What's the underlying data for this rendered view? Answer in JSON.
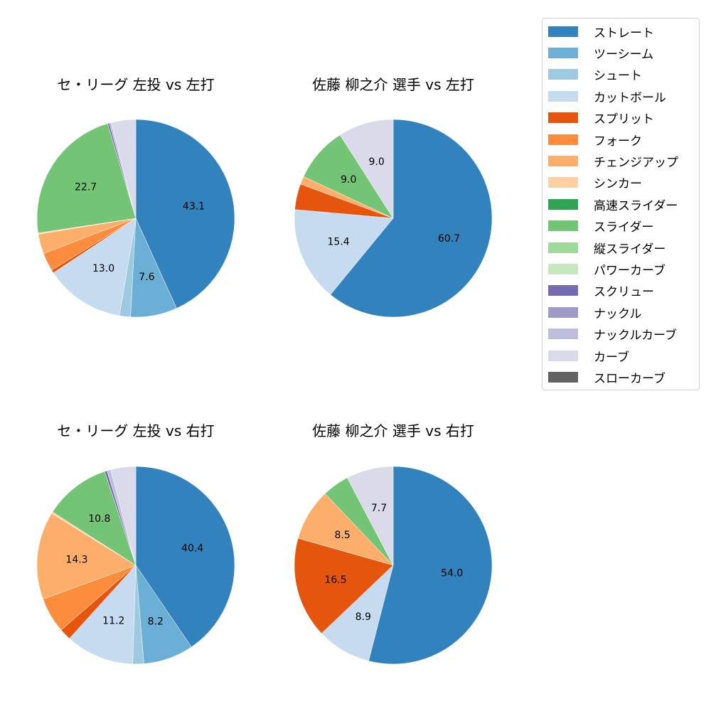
{
  "chart_data": [
    {
      "type": "pie",
      "title": "セ・リーグ 左投 vs 左打",
      "categories": [
        "ストレート",
        "ツーシーム",
        "シュート",
        "カットボール",
        "スプリット",
        "フォーク",
        "チェンジアップ",
        "シンカー",
        "スライダー",
        "スクリュー",
        "ナックルカーブ",
        "カーブ"
      ],
      "values": [
        43.1,
        7.6,
        1.8,
        13.0,
        0.5,
        3.0,
        3.2,
        0.2,
        22.7,
        0.3,
        0.3,
        4.0
      ],
      "labels_shown": [
        "43.1",
        "13.0",
        "22.7"
      ]
    },
    {
      "type": "pie",
      "title": "佐藤 柳之介 選手 vs 左打",
      "categories": [
        "ストレート",
        "カットボール",
        "スプリット",
        "チェンジアップ",
        "スライダー",
        "カーブ"
      ],
      "values": [
        60.7,
        15.4,
        4.2,
        1.3,
        9.0,
        9.0
      ],
      "labels_shown": [
        "60.7",
        "15.4",
        "9.0",
        "9.0"
      ]
    },
    {
      "type": "pie",
      "title": "セ・リーグ 左投 vs 右打",
      "categories": [
        "ストレート",
        "ツーシーム",
        "シュート",
        "カットボール",
        "スプリット",
        "フォーク",
        "チェンジアップ",
        "シンカー",
        "スライダー",
        "スクリュー",
        "ナックルカーブ",
        "カーブ"
      ],
      "values": [
        40.4,
        8.2,
        1.8,
        11.2,
        1.9,
        5.8,
        14.3,
        0.3,
        10.8,
        0.4,
        0.6,
        4.1
      ],
      "labels_shown": [
        "40.4",
        "8.2",
        "11.2",
        "14.3",
        "10.8"
      ]
    },
    {
      "type": "pie",
      "title": "佐藤 柳之介 選手 vs 右打",
      "categories": [
        "ストレート",
        "カットボール",
        "スプリット",
        "チェンジアップ",
        "スライダー",
        "カーブ"
      ],
      "values": [
        54.0,
        8.9,
        16.5,
        8.5,
        4.4,
        7.7
      ],
      "labels_shown": [
        "54.0",
        "8.9",
        "16.5",
        "8.5",
        "7.7"
      ]
    }
  ],
  "legend": {
    "items": [
      {
        "label": "ストレート",
        "color": "#3182bd"
      },
      {
        "label": "ツーシーム",
        "color": "#6baed6"
      },
      {
        "label": "シュート",
        "color": "#9ecae1"
      },
      {
        "label": "カットボール",
        "color": "#c6dbef"
      },
      {
        "label": "スプリット",
        "color": "#e6550d"
      },
      {
        "label": "フォーク",
        "color": "#fd8d3c"
      },
      {
        "label": "チェンジアップ",
        "color": "#fdae6b"
      },
      {
        "label": "シンカー",
        "color": "#fdd0a2"
      },
      {
        "label": "高速スライダー",
        "color": "#31a354"
      },
      {
        "label": "スライダー",
        "color": "#74c476"
      },
      {
        "label": "縦スライダー",
        "color": "#a1d99b"
      },
      {
        "label": "パワーカーブ",
        "color": "#c7e9c0"
      },
      {
        "label": "スクリュー",
        "color": "#756bb1"
      },
      {
        "label": "ナックル",
        "color": "#9e9ac8"
      },
      {
        "label": "ナックルカーブ",
        "color": "#bcbddc"
      },
      {
        "label": "カーブ",
        "color": "#dadaeb"
      },
      {
        "label": "スローカーブ",
        "color": "#636363"
      }
    ]
  },
  "pies": [
    {
      "title": "セ・リーグ 左投 vs 左打"
    },
    {
      "title": "佐藤 柳之介 選手 vs 左打"
    },
    {
      "title": "セ・リーグ 左投 vs 右打"
    },
    {
      "title": "佐藤 柳之介 選手 vs 右打"
    }
  ]
}
